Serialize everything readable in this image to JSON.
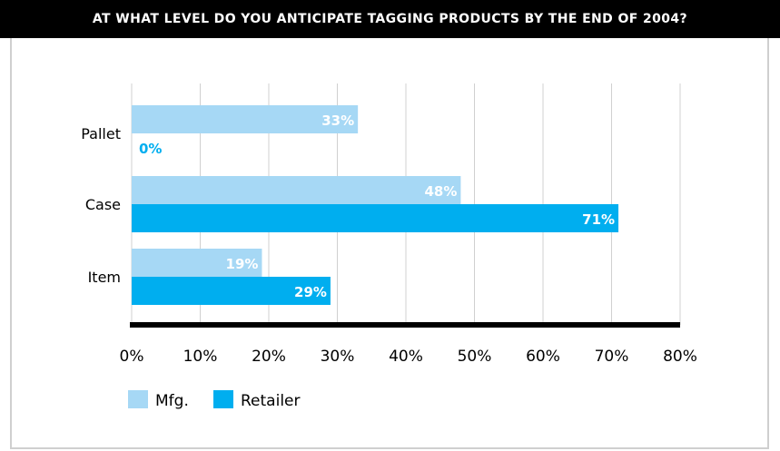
{
  "title": "AT WHAT LEVEL DO YOU ANTICIPATE TAGGING PRODUCTS BY THE END OF 2004?",
  "colors": {
    "mfg": "#a6d8f5",
    "retailer": "#00aeef",
    "grid": "#d0d0d0",
    "axis": "#000000"
  },
  "chart_data": {
    "type": "bar",
    "orientation": "horizontal",
    "title": "AT WHAT LEVEL DO YOU ANTICIPATE TAGGING PRODUCTS BY THE END OF 2004?",
    "categories": [
      "Pallet",
      "Case",
      "Item"
    ],
    "series": [
      {
        "name": "Mfg.",
        "values": [
          33,
          48,
          19
        ],
        "labels": [
          "33%",
          "48%",
          "19%"
        ]
      },
      {
        "name": "Retailer",
        "values": [
          0,
          71,
          29
        ],
        "labels": [
          "0%",
          "71%",
          "29%"
        ]
      }
    ],
    "xlim": [
      0,
      80
    ],
    "ticks": [
      "0%",
      "10%",
      "20%",
      "30%",
      "40%",
      "50%",
      "60%",
      "70%",
      "80%"
    ],
    "grid": true,
    "legend": "bottom-left"
  }
}
